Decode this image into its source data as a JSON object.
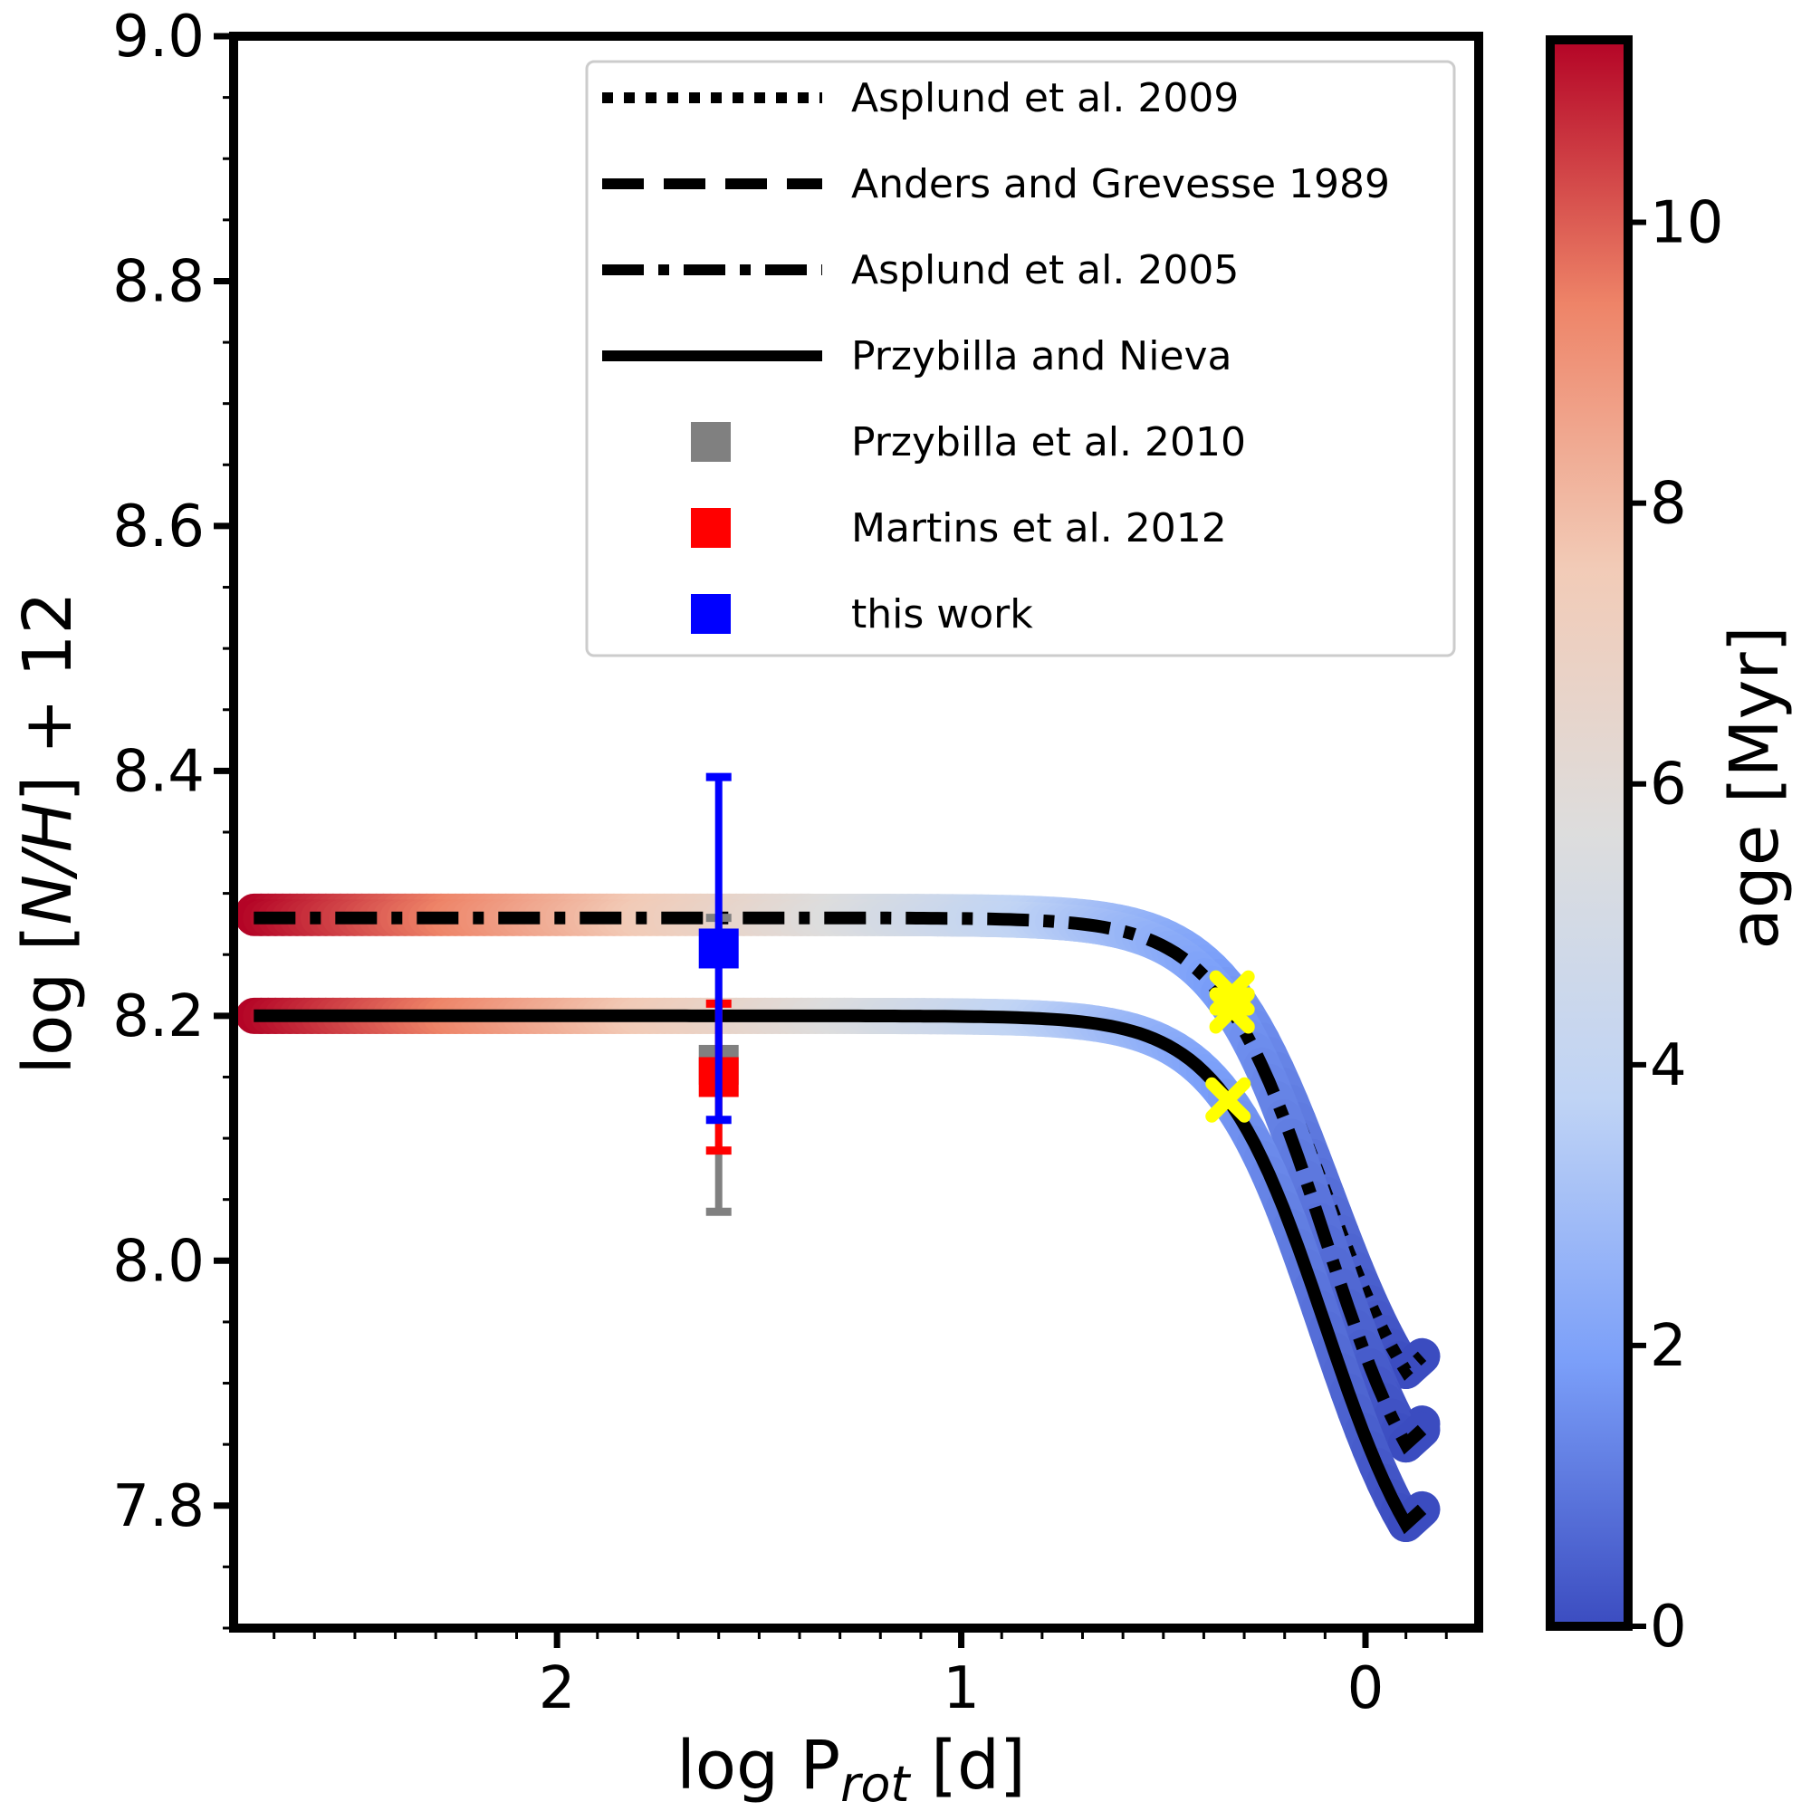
{
  "chart_data": {
    "type": "line",
    "title": "",
    "xlabel": "log P_rot [d]",
    "xlabel_main": "log P",
    "xlabel_sub": "rot",
    "xlabel_unit": " [d]",
    "ylabel": "log [N/H] + 12",
    "ylabel_pre": "log [",
    "ylabel_italic": "N/H",
    "ylabel_post": "] + 12",
    "xlim": [
      2.8,
      -0.28
    ],
    "ylim": [
      7.7,
      9.0
    ],
    "x_inverted": true,
    "xticks": [
      2,
      1,
      0
    ],
    "xtick_labels": [
      "2",
      "1",
      "0"
    ],
    "yticks": [
      7.8,
      8.0,
      8.2,
      8.4,
      8.6,
      8.8,
      9.0
    ],
    "ytick_labels": [
      "7.8",
      "8.0",
      "8.2",
      "8.4",
      "8.6",
      "8.8",
      "9.0"
    ],
    "colorbar": {
      "label": "age [Myr]",
      "range": [
        0,
        11.3
      ],
      "ticks": [
        0,
        2,
        4,
        6,
        8,
        10
      ],
      "tick_labels": [
        "0",
        "2",
        "4",
        "6",
        "8",
        "10"
      ],
      "colormap": "coolwarm",
      "colors": [
        "#3b4cc0",
        "#7b9ff9",
        "#c0d4f5",
        "#dddddd",
        "#f2cbb7",
        "#ee8468",
        "#b40426"
      ]
    },
    "track_x_range": [
      2.75,
      -0.1
    ],
    "track_x_knee": -0.1,
    "series": [
      {
        "name": "Asplund et al. 2009",
        "style": "dotted",
        "y_start": 8.285,
        "y_end": 7.91,
        "marker_x": 0.33
      },
      {
        "name": "Anders and Grevesse 1989",
        "style": "dashed",
        "y_start": 8.28,
        "y_end": 7.855,
        "marker_x": 0.33
      },
      {
        "name": "Asplund et al. 2005",
        "style": "dashdot",
        "y_start": 8.28,
        "y_end": 7.85,
        "marker_x": 0.33
      },
      {
        "name": "Przybilla and Nieva",
        "style": "solid",
        "y_start": 8.2,
        "y_end": 7.785,
        "marker_x": 0.34
      }
    ],
    "observations": [
      {
        "name": "Przybilla et al. 2010",
        "color": "#808080",
        "x": 1.6,
        "y": 8.16,
        "yerr_low": 0.12,
        "yerr_high": 0.12
      },
      {
        "name": "Martins et al. 2012",
        "color": "#ff0000",
        "x": 1.6,
        "y": 8.15,
        "yerr_low": 0.06,
        "yerr_high": 0.06
      },
      {
        "name": "this work",
        "color": "#0000ff",
        "x": 1.6,
        "y": 8.255,
        "yerr_low": 0.14,
        "yerr_high": 0.14
      }
    ],
    "legend": {
      "position": "top-right",
      "entries": [
        {
          "label": "Asplund et al. 2009",
          "kind": "dotted"
        },
        {
          "label": "Anders and Grevesse 1989",
          "kind": "dashed"
        },
        {
          "label": "Asplund et al. 2005",
          "kind": "dashdot"
        },
        {
          "label": "Przybilla and Nieva",
          "kind": "solid"
        },
        {
          "label": "Przybilla et al. 2010",
          "kind": "square",
          "color": "#808080"
        },
        {
          "label": "Martins et al. 2012",
          "kind": "square",
          "color": "#ff0000"
        },
        {
          "label": "this work",
          "kind": "square",
          "color": "#0000ff"
        }
      ]
    },
    "marker_color": "#ffff00"
  }
}
